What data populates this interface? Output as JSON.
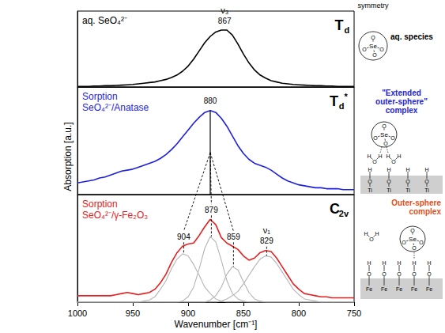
{
  "chart_data": [
    {
      "type": "line",
      "title": "aq. SeO₄²⁻",
      "color": "#000000",
      "symmetry": {
        "main": "T",
        "sub": "d"
      },
      "x": [
        1000,
        995,
        990,
        985,
        980,
        975,
        970,
        965,
        960,
        955,
        950,
        945,
        940,
        935,
        930,
        925,
        920,
        915,
        910,
        905,
        900,
        895,
        890,
        885,
        880,
        875,
        870,
        865,
        860,
        855,
        850,
        845,
        840,
        835,
        830,
        825,
        820,
        815,
        810,
        805,
        800,
        795,
        790,
        785,
        780,
        775,
        770,
        765,
        760,
        755,
        750
      ],
      "xlim": [
        1000,
        750
      ],
      "xticks": [
        1000,
        950,
        900,
        850,
        800,
        750
      ],
      "ylim": [
        0,
        1.2
      ],
      "yticks": [],
      "grid": false,
      "tick_labels": false,
      "series": [
        {
          "color": "#000000",
          "values": [
            0.01,
            0.01,
            0.01,
            0.015,
            0.015,
            0.02,
            0.02,
            0.025,
            0.03,
            0.035,
            0.04,
            0.05,
            0.06,
            0.07,
            0.08,
            0.1,
            0.12,
            0.15,
            0.19,
            0.25,
            0.33,
            0.44,
            0.57,
            0.7,
            0.8,
            0.87,
            0.9,
            0.9,
            0.82,
            0.68,
            0.52,
            0.38,
            0.27,
            0.19,
            0.14,
            0.1,
            0.08,
            0.06,
            0.05,
            0.04,
            0.035,
            0.03,
            0.025,
            0.02,
            0.02,
            0.015,
            0.015,
            0.01,
            0.01,
            0.01,
            0.01
          ]
        }
      ],
      "peaks": [
        {
          "x": 867
        }
      ],
      "mode_labels": [
        {
          "x": 867,
          "text": "ν₃",
          "line_style": "solid"
        }
      ]
    },
    {
      "type": "line",
      "title": "Sorption\nSeO₄²⁻/Anatase",
      "color": "#1f1fe0",
      "symmetry": {
        "main": "T",
        "sub": "d",
        "sup": "*"
      },
      "ylabel": "Absorption [a.u.]",
      "x": [
        1000,
        995,
        990,
        985,
        980,
        975,
        970,
        965,
        960,
        955,
        950,
        945,
        940,
        935,
        930,
        925,
        920,
        915,
        910,
        905,
        900,
        895,
        890,
        885,
        880,
        875,
        870,
        865,
        860,
        855,
        850,
        845,
        840,
        835,
        830,
        825,
        820,
        815,
        810,
        805,
        800,
        795,
        790,
        785,
        780,
        775,
        770,
        765,
        760,
        755,
        750
      ],
      "xlim": [
        1000,
        750
      ],
      "xticks": [
        1000,
        950,
        900,
        850,
        800,
        750
      ],
      "ylim": [
        0,
        1.1
      ],
      "yticks": [],
      "grid": false,
      "tick_labels": false,
      "series": [
        {
          "color": "#1f1fe0",
          "values": [
            0.12,
            0.13,
            0.14,
            0.15,
            0.17,
            0.18,
            0.2,
            0.22,
            0.24,
            0.25,
            0.26,
            0.28,
            0.3,
            0.32,
            0.34,
            0.37,
            0.41,
            0.46,
            0.52,
            0.59,
            0.66,
            0.73,
            0.79,
            0.84,
            0.86,
            0.84,
            0.78,
            0.7,
            0.6,
            0.5,
            0.42,
            0.36,
            0.32,
            0.3,
            0.28,
            0.25,
            0.21,
            0.17,
            0.14,
            0.12,
            0.1,
            0.09,
            0.08,
            0.07,
            0.07,
            0.06,
            0.06,
            0.06,
            0.05,
            0.05,
            0.05
          ]
        }
      ],
      "peaks": [
        {
          "x": 880,
          "line_style": "solid"
        }
      ],
      "connectors": [
        {
          "from": 880,
          "to": [
            904,
            879,
            859
          ]
        }
      ]
    },
    {
      "type": "line",
      "title": "Sorption\nSeO₄²⁻/γ-Fe₂O₃",
      "color": "#e62020",
      "symmetry": {
        "main": "C",
        "sub": "2v"
      },
      "xlabel": "Wavenumber [cm⁻¹]",
      "x": [
        1000,
        995,
        990,
        985,
        980,
        975,
        970,
        965,
        960,
        955,
        950,
        945,
        940,
        935,
        930,
        925,
        920,
        915,
        910,
        905,
        900,
        895,
        890,
        885,
        880,
        875,
        870,
        865,
        860,
        855,
        850,
        845,
        840,
        835,
        830,
        825,
        820,
        815,
        810,
        805,
        800,
        795,
        790,
        785,
        780,
        775,
        770,
        765,
        760,
        755,
        750
      ],
      "xlim": [
        1000,
        750
      ],
      "xticks": [
        1000,
        950,
        900,
        850,
        800,
        750
      ],
      "ylim": [
        0,
        1
      ],
      "yticks": [],
      "grid": false,
      "tick_labels": "x",
      "series": [
        {
          "color": "#b4b4b4",
          "values": [
            0,
            0,
            0,
            0,
            0,
            0,
            0,
            0,
            0,
            0,
            0,
            0,
            0.01,
            0.02,
            0.05,
            0.12,
            0.2,
            0.31,
            0.4,
            0.45,
            0.43,
            0.35,
            0.25,
            0.14,
            0.08,
            0.03,
            0.01,
            0,
            0,
            0,
            0,
            0,
            0,
            0,
            0,
            0,
            0,
            0,
            0,
            0,
            0,
            0,
            0,
            0,
            0,
            0,
            0,
            0,
            0,
            0,
            0
          ]
        },
        {
          "color": "#b4b4b4",
          "values": [
            0,
            0,
            0,
            0,
            0,
            0,
            0,
            0,
            0,
            0,
            0,
            0,
            0,
            0,
            0,
            0,
            0,
            0,
            0,
            0.01,
            0.05,
            0.14,
            0.31,
            0.5,
            0.61,
            0.56,
            0.39,
            0.2,
            0.08,
            0.03,
            0.01,
            0,
            0,
            0,
            0,
            0,
            0,
            0,
            0,
            0,
            0,
            0,
            0,
            0,
            0,
            0,
            0,
            0,
            0,
            0,
            0
          ]
        },
        {
          "color": "#b4b4b4",
          "values": [
            0,
            0,
            0,
            0,
            0,
            0,
            0,
            0,
            0,
            0,
            0,
            0,
            0,
            0,
            0,
            0,
            0,
            0,
            0,
            0,
            0,
            0,
            0,
            0,
            0.02,
            0.06,
            0.14,
            0.26,
            0.33,
            0.3,
            0.19,
            0.09,
            0.03,
            0.01,
            0,
            0,
            0,
            0,
            0,
            0,
            0,
            0,
            0,
            0,
            0,
            0,
            0,
            0,
            0,
            0,
            0
          ]
        },
        {
          "color": "#b4b4b4",
          "values": [
            0,
            0,
            0,
            0,
            0,
            0,
            0,
            0,
            0,
            0,
            0,
            0,
            0,
            0,
            0,
            0,
            0,
            0,
            0,
            0,
            0,
            0,
            0,
            0,
            0,
            0,
            0.01,
            0.03,
            0.06,
            0.1,
            0.17,
            0.25,
            0.33,
            0.4,
            0.43,
            0.42,
            0.36,
            0.28,
            0.2,
            0.12,
            0.07,
            0.03,
            0.02,
            0.01,
            0,
            0,
            0,
            0,
            0,
            0,
            0
          ]
        },
        {
          "color": "#e62020",
          "values": [
            0.06,
            0.06,
            0.06,
            0.06,
            0.06,
            0.06,
            0.06,
            0.07,
            0.08,
            0.09,
            0.08,
            0.07,
            0.08,
            0.09,
            0.12,
            0.18,
            0.26,
            0.37,
            0.46,
            0.52,
            0.54,
            0.55,
            0.62,
            0.7,
            0.77,
            0.72,
            0.6,
            0.55,
            0.52,
            0.49,
            0.43,
            0.39,
            0.41,
            0.46,
            0.48,
            0.47,
            0.41,
            0.33,
            0.25,
            0.17,
            0.12,
            0.08,
            0.07,
            0.06,
            0.05,
            0.05,
            0.04,
            0.04,
            0.04,
            0.04,
            0.04
          ]
        }
      ],
      "peaks": [
        {
          "x": 904,
          "line_style": "dashed"
        },
        {
          "x": 879,
          "line_style": "dashed"
        },
        {
          "x": 859,
          "line_style": "dashed"
        },
        {
          "x": 829,
          "line_style": "dashed"
        }
      ],
      "mode_labels": [
        {
          "x": 829,
          "text": "ν₁"
        }
      ]
    }
  ],
  "schematic": {
    "heading": "symmetry",
    "ion": {
      "center": "Se",
      "ligand": "O"
    },
    "water": {
      "oxygen": "O",
      "hydrogen": "H"
    },
    "panels": [
      {
        "label": "aq. species",
        "color": "#000000",
        "water_molecules": 0
      },
      {
        "label": "\"Extended outer-sphere\"\ncomplex",
        "color": "#2424d8",
        "water_molecules": 2,
        "surface": "Ti"
      },
      {
        "label": "Outer-sphere\ncomplex",
        "color": "#e0501c",
        "water_molecules": 1,
        "surface": "Fe"
      }
    ]
  }
}
